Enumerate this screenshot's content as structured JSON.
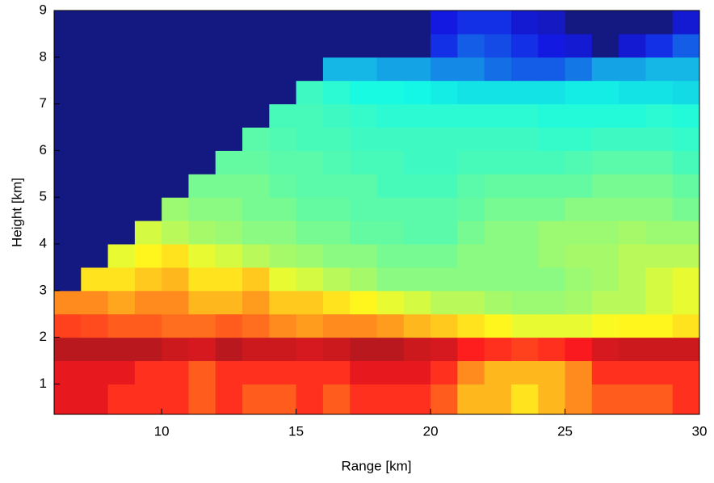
{
  "chart_data": {
    "type": "heatmap",
    "colormap": "jet",
    "zlim": [
      0,
      10
    ],
    "x_label": "Range [km]",
    "y_label": "Height [km]",
    "xlim": [
      6,
      30
    ],
    "ylim": [
      0.35,
      9
    ],
    "xticks": [
      10,
      15,
      20,
      25,
      30
    ],
    "yticks": [
      1,
      2,
      3,
      4,
      5,
      6,
      7,
      8,
      9
    ],
    "x_edges": [
      6,
      7,
      8,
      9,
      10,
      11,
      12,
      13,
      14,
      15,
      16,
      17,
      18,
      19,
      20,
      21,
      22,
      23,
      24,
      25,
      26,
      27,
      28,
      29,
      30
    ],
    "y_edges": [
      0.35,
      1,
      1.5,
      2,
      2.5,
      3,
      3.5,
      4,
      4.5,
      5,
      5.5,
      6,
      6.5,
      7,
      7.5,
      8,
      8.5,
      9
    ],
    "z": [
      [
        9,
        9,
        8.5,
        8.5,
        8.5,
        8,
        8.5,
        8,
        8,
        8.5,
        8,
        8.5,
        8.5,
        8.5,
        8,
        7,
        7,
        6.5,
        7,
        7.5,
        8,
        8,
        8,
        8.5
      ],
      [
        9,
        9,
        9,
        8.5,
        8.5,
        8,
        8.5,
        8.5,
        8.5,
        8.5,
        8.5,
        9,
        9,
        9,
        8.5,
        7.5,
        7,
        7,
        7,
        7.5,
        8.5,
        8.5,
        8.5,
        8.5
      ],
      [
        9.5,
        9.5,
        9.5,
        9.5,
        9.3,
        9.2,
        9.5,
        9.3,
        9.3,
        9.2,
        9.3,
        9.5,
        9.5,
        9.3,
        9.2,
        8.7,
        8.5,
        8.3,
        8.5,
        8.8,
        9.2,
        9.3,
        9.3,
        9.3
      ],
      [
        8.3,
        8.2,
        8,
        8,
        7.8,
        7.8,
        8,
        7.8,
        7.5,
        7.3,
        7.5,
        7.5,
        7.3,
        7,
        6.8,
        6.5,
        6.3,
        6,
        6,
        6,
        6.2,
        6.3,
        6.3,
        6.5
      ],
      [
        7.5,
        7.5,
        7.2,
        7.5,
        7.5,
        7,
        7,
        7.3,
        6.8,
        6.8,
        6.5,
        6.3,
        6,
        5.8,
        5.5,
        5.5,
        5.3,
        5.2,
        5.2,
        5.3,
        5.5,
        5.5,
        5.8,
        6
      ],
      [
        0,
        6.5,
        6.5,
        6.8,
        7,
        6.5,
        6.5,
        6.8,
        6,
        5.8,
        5.5,
        5.3,
        5,
        5,
        5,
        5,
        5,
        5,
        5,
        5.2,
        5.3,
        5.5,
        5.8,
        6
      ],
      [
        0,
        0,
        6,
        6.3,
        6.5,
        6,
        5.8,
        5.5,
        5.3,
        5.2,
        5,
        5,
        4.8,
        4.8,
        4.8,
        5,
        5,
        5,
        5.2,
        5.3,
        5.3,
        5.5,
        5.5,
        5.5
      ],
      [
        0,
        0,
        0,
        5.8,
        5.5,
        5.3,
        5.2,
        5,
        5,
        4.8,
        4.8,
        4.6,
        4.6,
        4.5,
        4.5,
        4.8,
        5,
        5,
        5.2,
        5.2,
        5.2,
        5.3,
        5.2,
        5.2
      ],
      [
        0,
        0,
        0,
        0,
        5.2,
        5,
        5,
        4.8,
        4.8,
        4.6,
        4.6,
        4.5,
        4.5,
        4.5,
        4.5,
        4.6,
        4.8,
        4.8,
        4.8,
        5,
        5,
        5,
        5,
        4.8
      ],
      [
        0,
        0,
        0,
        0,
        0,
        4.8,
        4.8,
        4.8,
        4.6,
        4.5,
        4.5,
        4.5,
        4.3,
        4.3,
        4.3,
        4.5,
        4.6,
        4.6,
        4.6,
        4.6,
        4.8,
        4.8,
        4.8,
        4.6
      ],
      [
        0,
        0,
        0,
        0,
        0,
        0,
        4.6,
        4.6,
        4.5,
        4.5,
        4.4,
        4.3,
        4.3,
        4.2,
        4.2,
        4.3,
        4.3,
        4.3,
        4.3,
        4.4,
        4.5,
        4.5,
        4.5,
        4.3
      ],
      [
        0,
        0,
        0,
        0,
        0,
        0,
        0,
        4.5,
        4.4,
        4.3,
        4.3,
        4.2,
        4.2,
        4.2,
        4.2,
        4.2,
        4.2,
        4.2,
        4.1,
        4.1,
        4.2,
        4.2,
        4.2,
        4.1
      ],
      [
        0,
        0,
        0,
        0,
        0,
        0,
        0,
        0,
        4.3,
        4.3,
        4.2,
        4.1,
        4,
        4,
        4,
        4,
        4,
        4,
        3.9,
        3.9,
        3.9,
        3.9,
        4,
        3.9
      ],
      [
        0,
        0,
        0,
        0,
        0,
        0,
        0,
        0,
        0,
        4.2,
        4,
        3.8,
        3.8,
        3.7,
        3.6,
        3.5,
        3.5,
        3.5,
        3.5,
        3.6,
        3.6,
        3.5,
        3.5,
        3.4
      ],
      [
        0,
        0,
        0,
        0,
        0,
        0,
        0,
        0,
        0,
        0,
        3,
        3,
        2.8,
        2.8,
        2.5,
        2.5,
        2.2,
        2,
        2,
        2.3,
        2.8,
        2.8,
        3,
        3
      ],
      [
        0,
        0,
        0,
        0,
        0,
        0,
        0,
        0,
        0,
        0,
        0,
        0,
        0,
        0,
        1.5,
        2,
        1.8,
        1.5,
        1.2,
        1,
        0,
        1,
        1.5,
        2
      ],
      [
        0,
        0,
        0,
        0,
        0,
        0,
        0,
        0,
        0,
        0,
        0,
        0,
        0,
        0,
        1.2,
        1.5,
        1.5,
        1,
        0.8,
        0,
        0,
        0,
        0,
        1
      ]
    ]
  }
}
